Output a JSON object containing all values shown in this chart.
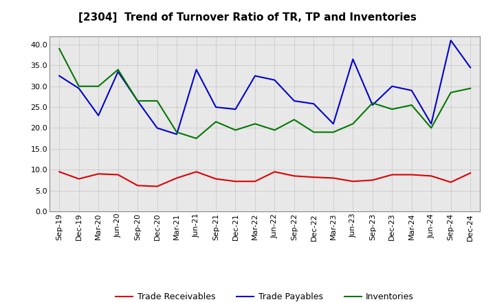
{
  "title": "[2304]  Trend of Turnover Ratio of TR, TP and Inventories",
  "x_labels": [
    "Sep-19",
    "Dec-19",
    "Mar-20",
    "Jun-20",
    "Sep-20",
    "Dec-20",
    "Mar-21",
    "Jun-21",
    "Sep-21",
    "Dec-21",
    "Mar-22",
    "Jun-22",
    "Sep-22",
    "Dec-22",
    "Mar-23",
    "Jun-23",
    "Sep-23",
    "Dec-23",
    "Mar-24",
    "Jun-24",
    "Sep-24",
    "Dec-24"
  ],
  "trade_receivables": [
    9.5,
    7.8,
    9.0,
    8.8,
    6.2,
    6.0,
    8.0,
    9.5,
    7.8,
    7.2,
    7.2,
    9.5,
    8.5,
    8.2,
    8.0,
    7.2,
    7.5,
    8.8,
    8.8,
    8.5,
    7.0,
    9.2
  ],
  "trade_payables": [
    32.5,
    29.5,
    23.0,
    33.5,
    26.5,
    20.0,
    18.5,
    34.0,
    25.0,
    24.5,
    32.5,
    31.5,
    26.5,
    25.8,
    21.0,
    36.5,
    25.5,
    30.0,
    29.0,
    21.0,
    41.0,
    34.5
  ],
  "inventories": [
    39.0,
    30.0,
    30.0,
    34.0,
    26.5,
    26.5,
    19.0,
    17.5,
    21.5,
    19.5,
    21.0,
    19.5,
    22.0,
    19.0,
    19.0,
    21.0,
    26.0,
    24.5,
    25.5,
    20.0,
    28.5,
    29.5
  ],
  "tr_color": "#dd0000",
  "tp_color": "#0000cc",
  "inv_color": "#007700",
  "ylim": [
    0,
    42
  ],
  "yticks": [
    0.0,
    5.0,
    10.0,
    15.0,
    20.0,
    25.0,
    30.0,
    35.0,
    40.0
  ],
  "legend_labels": [
    "Trade Receivables",
    "Trade Payables",
    "Inventories"
  ],
  "bg_color": "#ffffff",
  "plot_bg_color": "#e8e8e8",
  "grid_color": "#999999",
  "title_fontsize": 11,
  "axis_fontsize": 8,
  "legend_fontsize": 9
}
